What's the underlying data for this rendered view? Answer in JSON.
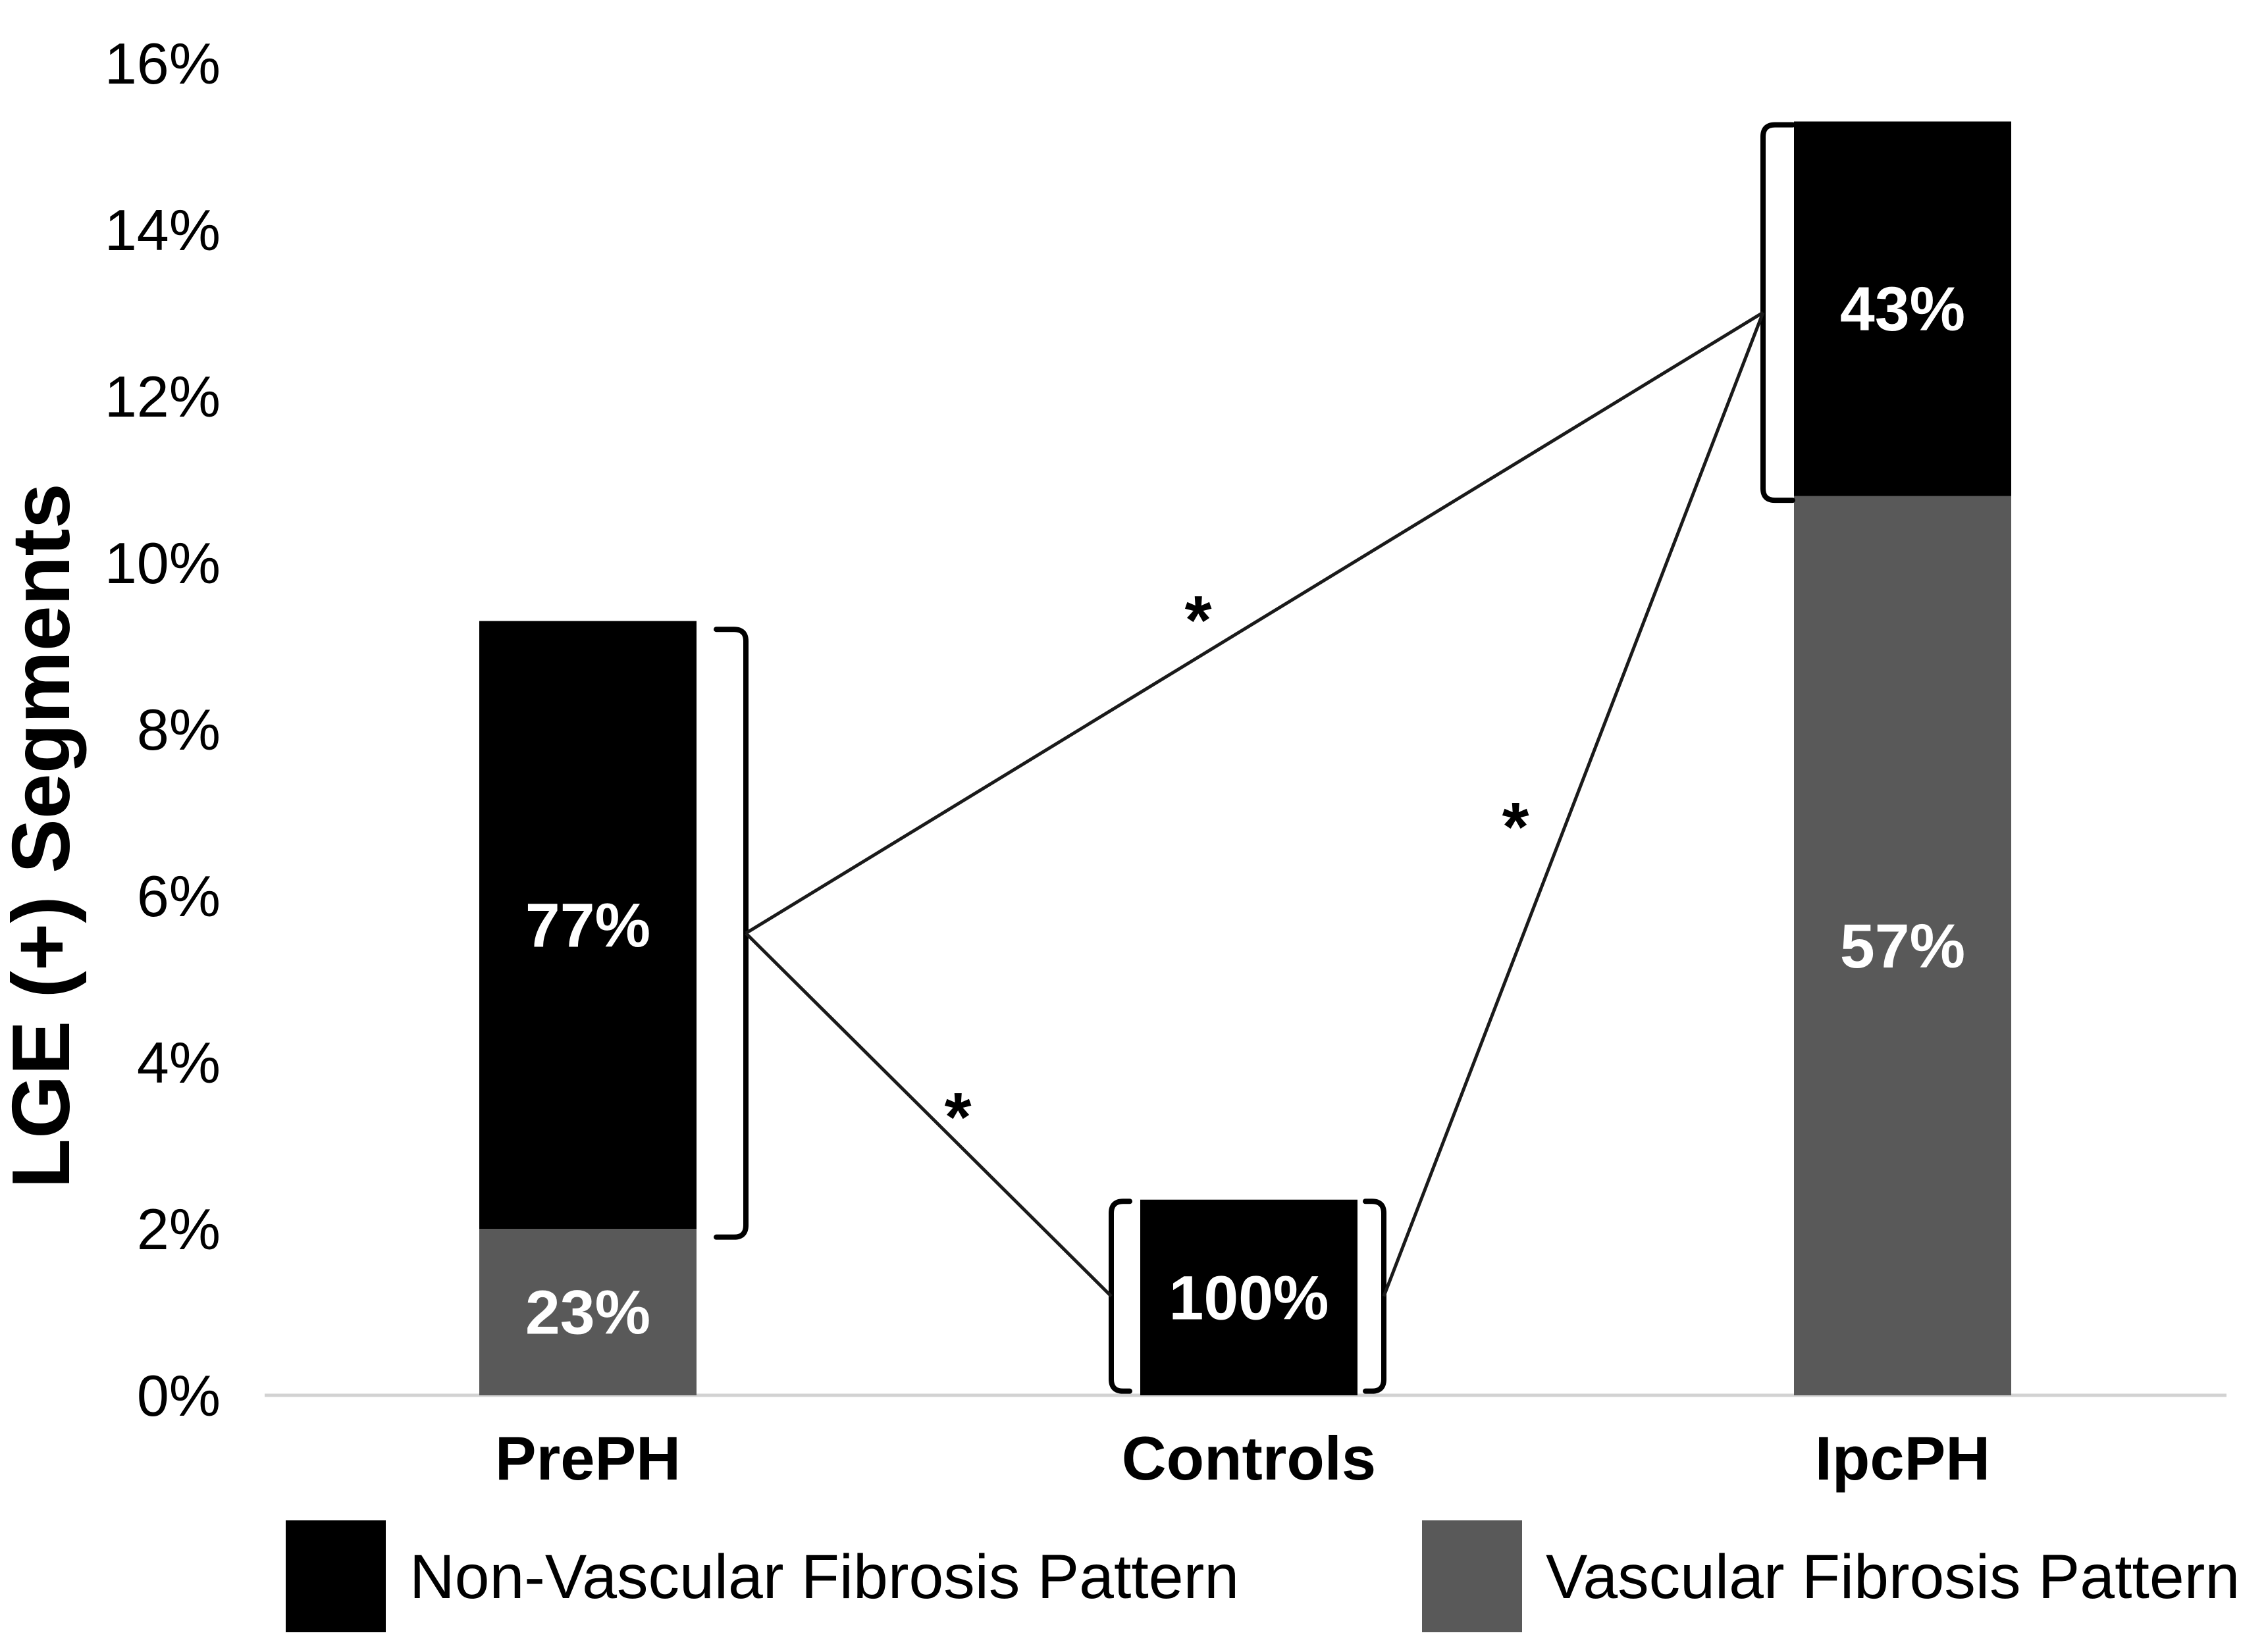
{
  "figure": {
    "background": "#ffffff",
    "description": "Stacked bar chart of LGE positive segments by fibrosis pattern"
  },
  "chart_data": {
    "type": "bar",
    "stacked": true,
    "title": "",
    "xlabel": "",
    "ylabel": "LGE (+) Segments",
    "ylim": [
      0,
      16
    ],
    "ytick_step": 2,
    "ytick_suffix": "%",
    "grid": false,
    "axis_color": "#d2d2d2",
    "text_color": "#000000",
    "bar_label_color": "#ffffff",
    "categories": [
      "PrePH",
      "Controls",
      "IpcPH"
    ],
    "series": [
      {
        "name": "Vascular Fibrosis Pattern",
        "color": "#595959",
        "values": [
          2.0,
          0,
          10.8
        ],
        "segment_labels": [
          "23%",
          "",
          "57%"
        ]
      },
      {
        "name": "Non-Vascular Fibrosis Pattern",
        "color": "#000000",
        "values": [
          7.3,
          2.35,
          4.5
        ],
        "segment_labels": [
          "77%",
          "100%",
          "43%"
        ]
      }
    ],
    "totals": [
      9.3,
      2.35,
      15.3
    ],
    "legend": {
      "position": "bottom",
      "items": [
        {
          "label": "Non-Vascular Fibrosis Pattern",
          "color": "#000000"
        },
        {
          "label": "Vascular Fibrosis Pattern",
          "color": "#595959"
        }
      ]
    },
    "annotations": {
      "brackets": [
        {
          "bar": 0,
          "side": "right",
          "offset": 75,
          "hook": 45,
          "from_pct": 1.9,
          "to_pct": 9.2
        },
        {
          "bar": 1,
          "side": "left",
          "offset": 44,
          "hook": 28,
          "from_pct": 0.05,
          "to_pct": 2.33
        },
        {
          "bar": 1,
          "side": "right",
          "offset": 40,
          "hook": 28,
          "from_pct": 0.05,
          "to_pct": 2.33
        },
        {
          "bar": 2,
          "side": "left",
          "offset": 47,
          "hook": 45,
          "from_pct": 10.75,
          "to_pct": 15.26
        }
      ],
      "connectors": [
        {
          "from_bracket": 0,
          "to_bracket": 3
        },
        {
          "from_bracket": 0,
          "to_bracket": 1
        },
        {
          "from_bracket": 2,
          "to_bracket": 3
        }
      ],
      "significance_markers": [
        {
          "text": "*",
          "x": 1820,
          "y": 923
        },
        {
          "text": "*",
          "x": 1455,
          "y": 1678
        },
        {
          "text": "*",
          "x": 2302,
          "y": 1237
        }
      ]
    }
  }
}
